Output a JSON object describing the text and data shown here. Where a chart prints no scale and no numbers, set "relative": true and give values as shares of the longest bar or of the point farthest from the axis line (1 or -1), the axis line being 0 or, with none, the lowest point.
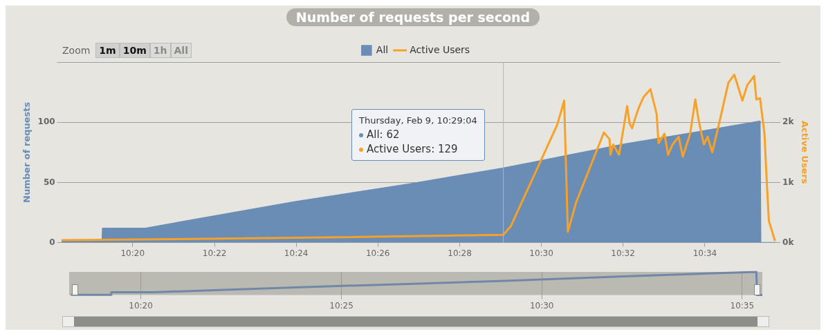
{
  "chart_data": [
    {
      "type": "area",
      "title": "Number of requests per second",
      "ylabel": "Number of requests",
      "y2label": "Active Users",
      "legend": "top",
      "grid": "y",
      "xlim": [
        10.3042,
        10.5958
      ],
      "xticks": [
        {
          "value": 10.3333,
          "label": "10:20"
        },
        {
          "value": 10.3667,
          "label": "10:22"
        },
        {
          "value": 10.4,
          "label": "10:24"
        },
        {
          "value": 10.4333,
          "label": "10:26"
        },
        {
          "value": 10.4667,
          "label": "10:28"
        },
        {
          "value": 10.5,
          "label": "10:30"
        },
        {
          "value": 10.5333,
          "label": "10:32"
        },
        {
          "value": 10.5667,
          "label": "10:34"
        }
      ],
      "ylim": [
        0,
        150
      ],
      "yticks": [
        0,
        50,
        100,
        {
          "value": 150,
          "label": null
        }
      ],
      "y2lim": [
        0,
        3000
      ],
      "y2ticks": [
        {
          "value": 0,
          "label": "0k"
        },
        {
          "value": 1000,
          "label": "1k"
        },
        {
          "value": 2000,
          "label": "2k"
        },
        {
          "value": 3000,
          "label": null
        }
      ],
      "ref_lines": [
        {
          "axis": "x",
          "value": 10.4845,
          "color": "#b5b5b5"
        }
      ],
      "annotations": [
        "Zoom",
        "1m",
        "10m",
        "1h",
        "All",
        "Thursday, Feb 9, 10:29:04",
        "All: 62",
        "Active Users: 129"
      ],
      "series": [
        {
          "name": "All",
          "color": "#6a8db6",
          "x": [
            10.3042,
            10.3208,
            10.321,
            10.3385,
            10.366,
            10.3995,
            10.4467,
            10.4845,
            10.5093,
            10.5342,
            10.5635,
            10.5892,
            10.5895,
            10.5958
          ],
          "values": [
            1,
            1,
            12,
            12,
            22,
            34,
            49,
            62,
            72,
            82,
            92,
            101,
            0,
            0
          ]
        },
        {
          "name": "Active Users",
          "type": "line",
          "axis": "y2",
          "color": "#f7a128",
          "x": [
            10.3042,
            10.4,
            10.4845,
            10.4875,
            10.5065,
            10.5093,
            10.5108,
            10.5142,
            10.5255,
            10.5278,
            10.5282,
            10.5293,
            10.5317,
            10.5342,
            10.535,
            10.536,
            10.537,
            10.5383,
            10.5398,
            10.5417,
            10.5445,
            10.547,
            10.5478,
            10.5502,
            10.5517,
            10.5535,
            10.556,
            10.5577,
            10.5607,
            10.5628,
            10.564,
            10.565,
            10.5663,
            10.5678,
            10.5697,
            10.573,
            10.5763,
            10.5787,
            10.582,
            10.584,
            10.5868,
            10.5877,
            10.5892,
            10.591,
            10.592,
            10.5928,
            10.5953
          ],
          "values": [
            40,
            80,
            130,
            270,
            1960,
            2360,
            180,
            670,
            1830,
            1720,
            1460,
            1630,
            1460,
            2070,
            2270,
            1980,
            1900,
            2070,
            2250,
            2420,
            2550,
            2140,
            1650,
            1810,
            1460,
            1630,
            1760,
            1430,
            1810,
            2380,
            2070,
            1870,
            1630,
            1760,
            1500,
            2070,
            2660,
            2790,
            2360,
            2620,
            2770,
            2380,
            2400,
            1810,
            970,
            360,
            30
          ]
        }
      ]
    },
    {
      "type": "line",
      "relative": true,
      "grid": "x",
      "tick_labels": "x",
      "xlim": [
        10.3035,
        10.5917
      ],
      "xticks": [
        {
          "value": 10.3333,
          "label": "10:20"
        },
        {
          "value": 10.4167,
          "label": "10:25"
        },
        {
          "value": 10.5,
          "label": "10:30"
        },
        {
          "value": 10.5833,
          "label": "10:35"
        }
      ],
      "series": [
        {
          "color": "#7088a8",
          "x": [
            10.3042,
            10.3208,
            10.321,
            10.3385,
            10.366,
            10.3995,
            10.4467,
            10.4845,
            10.5093,
            10.5342,
            10.5635,
            10.5892,
            10.5895,
            10.5917
          ],
          "values": [
            0.01,
            0.01,
            0.12,
            0.12,
            0.22,
            0.34,
            0.49,
            0.61,
            0.71,
            0.81,
            0.91,
            1,
            0,
            0
          ]
        }
      ]
    }
  ]
}
